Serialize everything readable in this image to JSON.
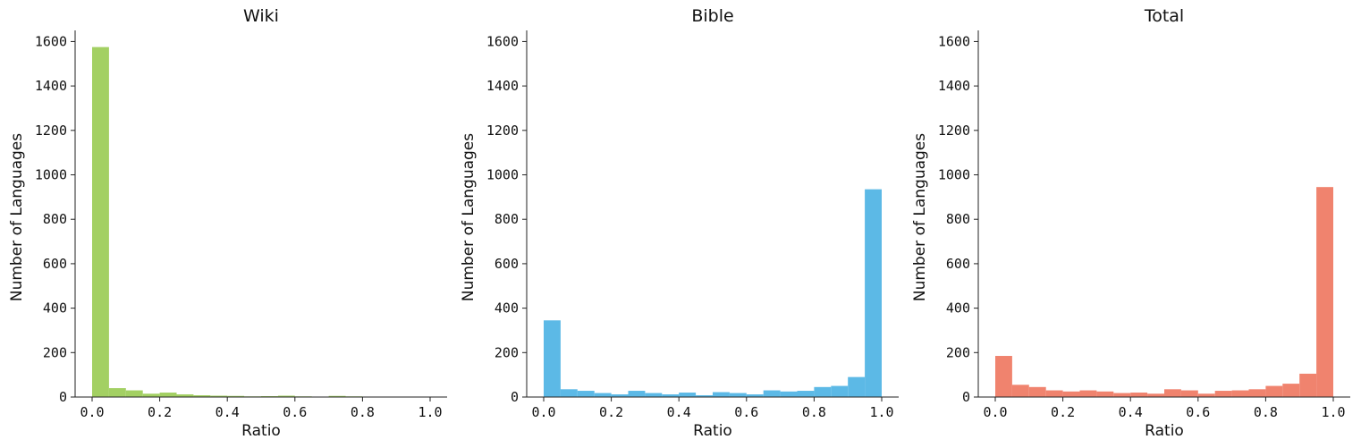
{
  "chart_data": [
    {
      "type": "bar",
      "title": "Wiki",
      "xlabel": "Ratio",
      "ylabel": "Number of Languages",
      "color": "#a3d063",
      "xlim": [
        0,
        1
      ],
      "ylim": [
        0,
        1650
      ],
      "xticks": [
        "0.0",
        "0.2",
        "0.4",
        "0.6",
        "0.8",
        "1.0"
      ],
      "yticks": [
        "0",
        "200",
        "400",
        "600",
        "800",
        "1000",
        "1200",
        "1400",
        "1600"
      ],
      "bin_edges": [
        0.0,
        0.05,
        0.1,
        0.15,
        0.2,
        0.25,
        0.3,
        0.35,
        0.4,
        0.45,
        0.5,
        0.55,
        0.6,
        0.65,
        0.7,
        0.75,
        0.8,
        0.85,
        0.9,
        0.95,
        1.0
      ],
      "values": [
        1575,
        40,
        30,
        15,
        20,
        12,
        8,
        6,
        5,
        3,
        4,
        6,
        3,
        2,
        5,
        3,
        2,
        2,
        2,
        1
      ]
    },
    {
      "type": "bar",
      "title": "Bible",
      "xlabel": "Ratio",
      "ylabel": "Number of Languages",
      "color": "#5cb9e6",
      "xlim": [
        0,
        1
      ],
      "ylim": [
        0,
        1650
      ],
      "xticks": [
        "0.0",
        "0.2",
        "0.4",
        "0.6",
        "0.8",
        "1.0"
      ],
      "yticks": [
        "0",
        "200",
        "400",
        "600",
        "800",
        "1000",
        "1200",
        "1400",
        "1600"
      ],
      "bin_edges": [
        0.0,
        0.05,
        0.1,
        0.15,
        0.2,
        0.25,
        0.3,
        0.35,
        0.4,
        0.45,
        0.5,
        0.55,
        0.6,
        0.65,
        0.7,
        0.75,
        0.8,
        0.85,
        0.9,
        0.95,
        1.0
      ],
      "values": [
        345,
        35,
        28,
        18,
        12,
        28,
        18,
        12,
        20,
        8,
        22,
        18,
        12,
        30,
        25,
        28,
        45,
        50,
        90,
        935
      ]
    },
    {
      "type": "bar",
      "title": "Total",
      "xlabel": "Ratio",
      "ylabel": "Number of Languages",
      "color": "#f0836e",
      "xlim": [
        0,
        1
      ],
      "ylim": [
        0,
        1650
      ],
      "xticks": [
        "0.0",
        "0.2",
        "0.4",
        "0.6",
        "0.8",
        "1.0"
      ],
      "yticks": [
        "0",
        "200",
        "400",
        "600",
        "800",
        "1000",
        "1200",
        "1400",
        "1600"
      ],
      "bin_edges": [
        0.0,
        0.05,
        0.1,
        0.15,
        0.2,
        0.25,
        0.3,
        0.35,
        0.4,
        0.45,
        0.5,
        0.55,
        0.6,
        0.65,
        0.7,
        0.75,
        0.8,
        0.85,
        0.9,
        0.95,
        1.0
      ],
      "values": [
        185,
        55,
        45,
        30,
        25,
        30,
        25,
        18,
        20,
        15,
        35,
        30,
        15,
        28,
        30,
        35,
        50,
        60,
        105,
        945
      ]
    }
  ]
}
